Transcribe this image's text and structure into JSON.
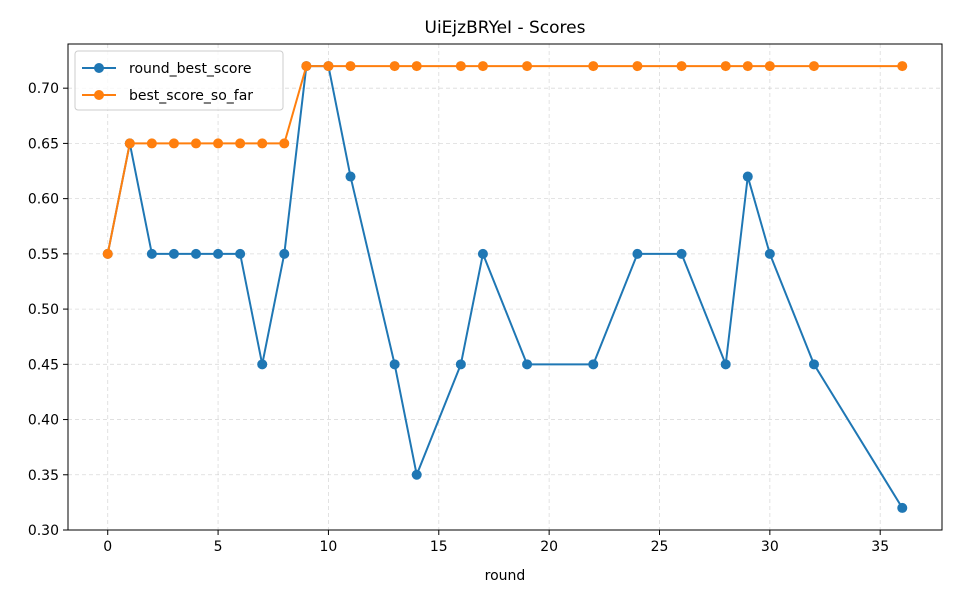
{
  "chart_data": {
    "type": "line",
    "title": "UiEjzBRYeI - Scores",
    "xlabel": "round",
    "ylabel": "",
    "xlim": [
      -1.8,
      37.8
    ],
    "ylim": [
      0.3,
      0.74
    ],
    "xticks": [
      0,
      5,
      10,
      15,
      20,
      25,
      30,
      35
    ],
    "yticks": [
      0.3,
      0.35,
      0.4,
      0.45,
      0.5,
      0.55,
      0.6,
      0.65,
      0.7
    ],
    "grid": true,
    "legend_position": "top-left",
    "series": [
      {
        "name": "round_best_score",
        "color": "#1f77b4",
        "x": [
          0,
          1,
          2,
          3,
          4,
          5,
          6,
          7,
          8,
          9,
          10,
          11,
          13,
          14,
          16,
          17,
          19,
          22,
          24,
          26,
          28,
          29,
          30,
          32,
          36
        ],
        "y": [
          0.55,
          0.65,
          0.55,
          0.55,
          0.55,
          0.55,
          0.55,
          0.45,
          0.55,
          0.72,
          0.72,
          0.62,
          0.45,
          0.35,
          0.45,
          0.55,
          0.45,
          0.45,
          0.55,
          0.55,
          0.45,
          0.62,
          0.55,
          0.45,
          0.32
        ]
      },
      {
        "name": "best_score_so_far",
        "color": "#ff7f0e",
        "x": [
          0,
          1,
          2,
          3,
          4,
          5,
          6,
          7,
          8,
          9,
          10,
          11,
          13,
          14,
          16,
          17,
          19,
          22,
          24,
          26,
          28,
          29,
          30,
          32,
          36
        ],
        "y": [
          0.55,
          0.65,
          0.65,
          0.65,
          0.65,
          0.65,
          0.65,
          0.65,
          0.65,
          0.72,
          0.72,
          0.72,
          0.72,
          0.72,
          0.72,
          0.72,
          0.72,
          0.72,
          0.72,
          0.72,
          0.72,
          0.72,
          0.72,
          0.72,
          0.72
        ]
      }
    ]
  }
}
